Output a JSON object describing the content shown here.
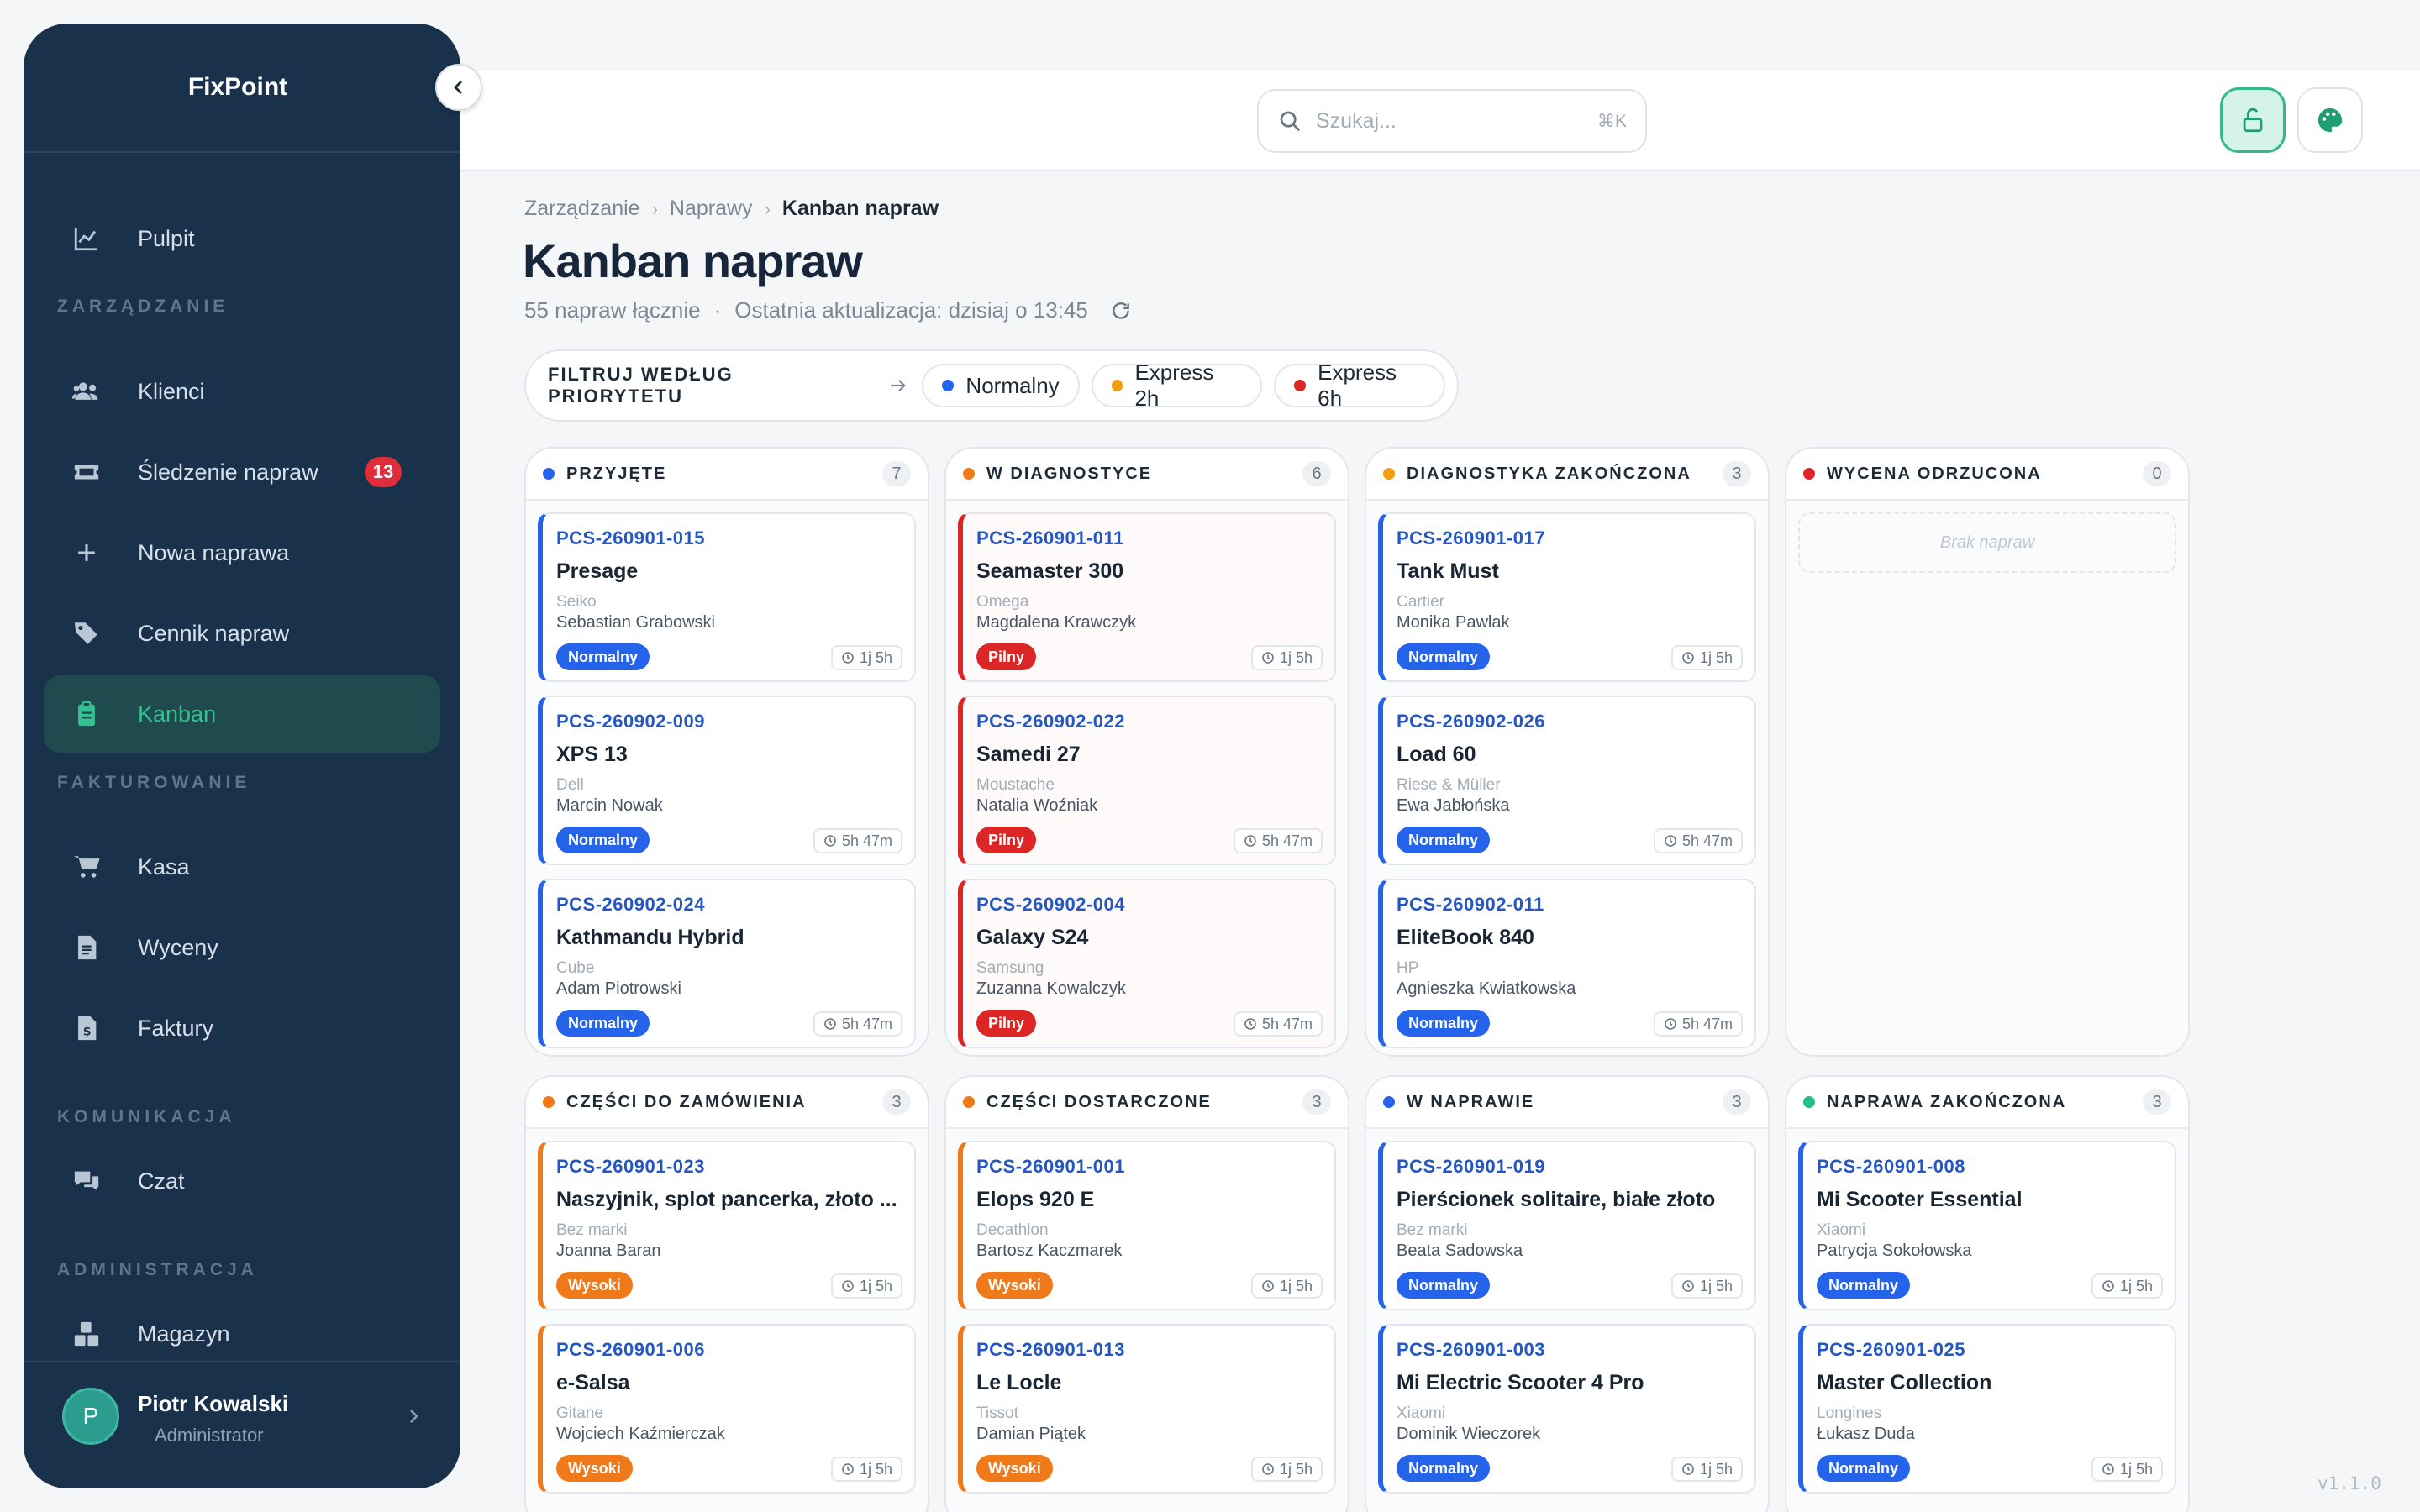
{
  "app": {
    "brand": "FixPoint",
    "version": "v1.1.0"
  },
  "sidebar": {
    "items": [
      {
        "label": "Pulpit",
        "icon": "chart-line-icon"
      },
      {
        "label": "Klienci",
        "icon": "users-icon"
      },
      {
        "label": "Śledzenie napraw",
        "icon": "ticket-icon",
        "badge": "13"
      },
      {
        "label": "Nowa naprawa",
        "icon": "plus-icon"
      },
      {
        "label": "Cennik napraw",
        "icon": "tags-icon"
      },
      {
        "label": "Kanban",
        "icon": "clipboard-icon",
        "active": true
      },
      {
        "label": "Kasa",
        "icon": "cart-icon"
      },
      {
        "label": "Wyceny",
        "icon": "file-text-icon"
      },
      {
        "label": "Faktury",
        "icon": "file-invoice-icon"
      },
      {
        "label": "Czat",
        "icon": "chat-icon"
      },
      {
        "label": "Magazyn",
        "icon": "boxes-icon"
      }
    ],
    "sections": [
      "ZARZĄDZANIE",
      "FAKTUROWANIE",
      "KOMUNIKACJA",
      "ADMINISTRACJA"
    ],
    "user": {
      "initial": "P",
      "name": "Piotr Kowalski",
      "role": "Administrator"
    }
  },
  "header": {
    "search_placeholder": "Szukaj...",
    "search_shortcut": "⌘K"
  },
  "breadcrumb": [
    "Zarządzanie",
    "Naprawy",
    "Kanban napraw"
  ],
  "page": {
    "title": "Kanban napraw",
    "total": "55 napraw łącznie",
    "updated": "Ostatnia aktualizacja: dzisiaj o 13:45"
  },
  "filter": {
    "label": "FILTRUJ WEDŁUG PRIORYTETU",
    "chips": [
      {
        "label": "Normalny",
        "color": "#2563eb"
      },
      {
        "label": "Express 2h",
        "color": "#f59e0b"
      },
      {
        "label": "Express 6h",
        "color": "#dc2626"
      }
    ]
  },
  "colors": {
    "Normalny": "#2563eb",
    "Pilny": "#dc2626",
    "Wysoki": "#f07a1a"
  },
  "columns": [
    {
      "title": "PRZYJĘTE",
      "count": "7",
      "color": "#2563eb",
      "cards": [
        {
          "id": "PCS-260901-015",
          "name": "Presage",
          "brand": "Seiko",
          "client": "Sebastian Grabowski",
          "priority": "Normalny",
          "time": "1j 5h"
        },
        {
          "id": "PCS-260902-009",
          "name": "XPS 13",
          "brand": "Dell",
          "client": "Marcin Nowak",
          "priority": "Normalny",
          "time": "5h 47m"
        },
        {
          "id": "PCS-260902-024",
          "name": "Kathmandu Hybrid",
          "brand": "Cube",
          "client": "Adam Piotrowski",
          "priority": "Normalny",
          "time": "5h 47m"
        }
      ]
    },
    {
      "title": "W DIAGNOSTYCE",
      "count": "6",
      "color": "#f07a1a",
      "cards": [
        {
          "id": "PCS-260901-011",
          "name": "Seamaster 300",
          "brand": "Omega",
          "client": "Magdalena Krawczyk",
          "priority": "Pilny",
          "time": "1j 5h"
        },
        {
          "id": "PCS-260902-022",
          "name": "Samedi 27",
          "brand": "Moustache",
          "client": "Natalia Woźniak",
          "priority": "Pilny",
          "time": "5h 47m"
        },
        {
          "id": "PCS-260902-004",
          "name": "Galaxy S24",
          "brand": "Samsung",
          "client": "Zuzanna Kowalczyk",
          "priority": "Pilny",
          "time": "5h 47m"
        }
      ]
    },
    {
      "title": "DIAGNOSTYKA ZAKOŃCZONA",
      "count": "3",
      "color": "#f59e0b",
      "cards": [
        {
          "id": "PCS-260901-017",
          "name": "Tank Must",
          "brand": "Cartier",
          "client": "Monika Pawlak",
          "priority": "Normalny",
          "time": "1j 5h"
        },
        {
          "id": "PCS-260902-026",
          "name": "Load 60",
          "brand": "Riese & Müller",
          "client": "Ewa Jabłońska",
          "priority": "Normalny",
          "time": "5h 47m"
        },
        {
          "id": "PCS-260902-011",
          "name": "EliteBook 840",
          "brand": "HP",
          "client": "Agnieszka Kwiatkowska",
          "priority": "Normalny",
          "time": "5h 47m"
        }
      ]
    },
    {
      "title": "WYCENA ODRZUCONA",
      "count": "0",
      "color": "#dc2626",
      "empty": "Brak napraw",
      "cards": []
    },
    {
      "title": "CZĘŚCI DO ZAMÓWIENIA",
      "count": "3",
      "color": "#f07a1a",
      "cards": [
        {
          "id": "PCS-260901-023",
          "name": "Naszyjnik, splot pancerka, złoto ...",
          "brand": "Bez marki",
          "client": "Joanna Baran",
          "priority": "Wysoki",
          "time": "1j 5h"
        },
        {
          "id": "PCS-260901-006",
          "name": "e-Salsa",
          "brand": "Gitane",
          "client": "Wojciech Kaźmierczak",
          "priority": "Wysoki",
          "time": "1j 5h"
        }
      ]
    },
    {
      "title": "CZĘŚCI DOSTARCZONE",
      "count": "3",
      "color": "#f07a1a",
      "cards": [
        {
          "id": "PCS-260901-001",
          "name": "Elops 920 E",
          "brand": "Decathlon",
          "client": "Bartosz Kaczmarek",
          "priority": "Wysoki",
          "time": "1j 5h"
        },
        {
          "id": "PCS-260901-013",
          "name": "Le Locle",
          "brand": "Tissot",
          "client": "Damian Piątek",
          "priority": "Wysoki",
          "time": "1j 5h"
        }
      ]
    },
    {
      "title": "W NAPRAWIE",
      "count": "3",
      "color": "#2563eb",
      "cards": [
        {
          "id": "PCS-260901-019",
          "name": "Pierścionek solitaire, białe złoto",
          "brand": "Bez marki",
          "client": "Beata Sadowska",
          "priority": "Normalny",
          "time": "1j 5h"
        },
        {
          "id": "PCS-260901-003",
          "name": "Mi Electric Scooter 4 Pro",
          "brand": "Xiaomi",
          "client": "Dominik Wieczorek",
          "priority": "Normalny",
          "time": "1j 5h"
        }
      ]
    },
    {
      "title": "NAPRAWA ZAKOŃCZONA",
      "count": "3",
      "color": "#22c08a",
      "cards": [
        {
          "id": "PCS-260901-008",
          "name": "Mi Scooter Essential",
          "brand": "Xiaomi",
          "client": "Patrycja Sokołowska",
          "priority": "Normalny",
          "time": "1j 5h"
        },
        {
          "id": "PCS-260901-025",
          "name": "Master Collection",
          "brand": "Longines",
          "client": "Łukasz Duda",
          "priority": "Normalny",
          "time": "1j 5h"
        }
      ]
    }
  ]
}
